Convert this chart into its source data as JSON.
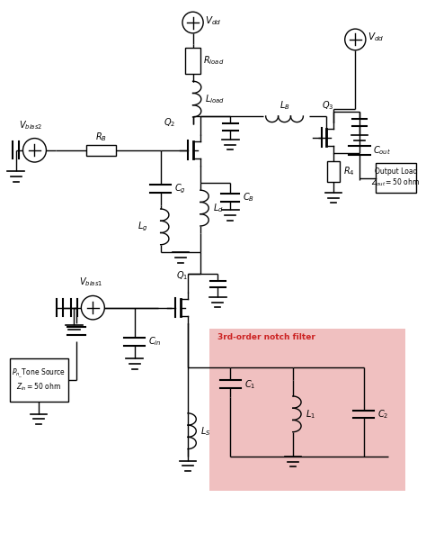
{
  "bg_color": "#ffffff",
  "notch_bg": "#f0c0c0",
  "line_color": "#000000",
  "figsize": [
    4.74,
    6.03
  ],
  "dpi": 100,
  "lw": 1.0,
  "xlim": [
    0,
    100
  ],
  "ylim": [
    0,
    127
  ]
}
